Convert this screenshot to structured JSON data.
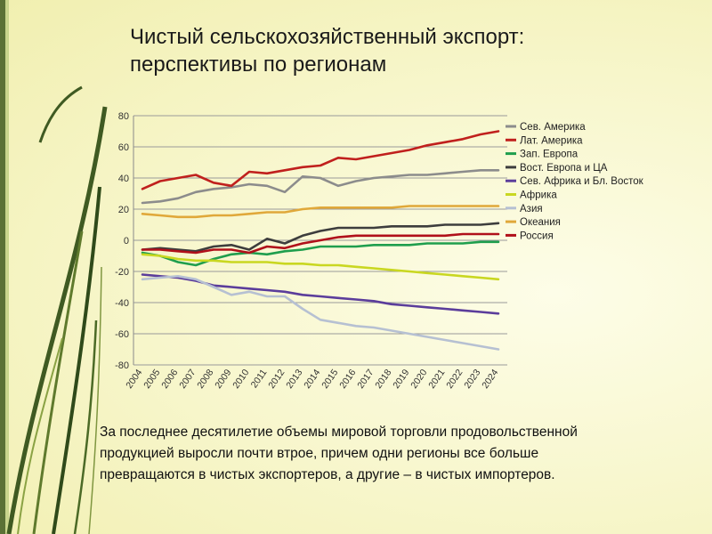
{
  "page": {
    "title_lines": [
      "Чистый сельскохозяйственный экспорт:",
      "перспективы по регионам"
    ],
    "caption_lines": [
      "За последнее десятилетие объемы мировой торговли продовольственной",
      "продукцией выросли почти втрое, причем одни регионы все больше",
      "превращаются в чистых экспортеров, а другие – в чистых импортеров."
    ]
  },
  "chart_data": {
    "type": "line",
    "title": "",
    "xlabel": "",
    "ylabel": "",
    "x": [
      "2004",
      "2005",
      "2006",
      "2007",
      "2008",
      "2009",
      "2010",
      "2011",
      "2012",
      "2013",
      "2014",
      "2015",
      "2016",
      "2017",
      "2018",
      "2019",
      "2020",
      "2021",
      "2022",
      "2023",
      "2024"
    ],
    "ylim": [
      -80,
      80
    ],
    "yticks": [
      80,
      60,
      40,
      20,
      0,
      -20,
      -40,
      -60,
      -80
    ],
    "ytick_labels": [
      "80",
      "60",
      "40",
      "20",
      "0",
      "-20",
      "-40",
      "-60",
      "-80"
    ],
    "grid": true,
    "legend_position": "right",
    "series": [
      {
        "name": "Сев. Америка",
        "color": "#8c8c8c",
        "values": [
          24,
          25,
          27,
          31,
          33,
          34,
          36,
          35,
          31,
          41,
          40,
          35,
          38,
          40,
          41,
          42,
          42,
          43,
          44,
          45,
          45
        ]
      },
      {
        "name": "Лат. Америка",
        "color": "#c0201d",
        "values": [
          33,
          38,
          40,
          42,
          37,
          35,
          44,
          43,
          45,
          47,
          48,
          53,
          52,
          54,
          56,
          58,
          61,
          63,
          65,
          68,
          70
        ]
      },
      {
        "name": "Зап. Европа",
        "color": "#1f9e4d",
        "values": [
          -8,
          -10,
          -14,
          -16,
          -12,
          -9,
          -8,
          -9,
          -7,
          -6,
          -4,
          -4,
          -4,
          -3,
          -3,
          -3,
          -2,
          -2,
          -2,
          -1,
          -1
        ]
      },
      {
        "name": "Вост. Европа и ЦА",
        "color": "#3d3d3d",
        "values": [
          -6,
          -5,
          -6,
          -7,
          -4,
          -3,
          -6,
          1,
          -2,
          3,
          6,
          8,
          8,
          8,
          9,
          9,
          9,
          10,
          10,
          10,
          11
        ]
      },
      {
        "name": "Сев. Африка и Бл. Восток",
        "color": "#5b3d9b",
        "values": [
          -22,
          -23,
          -24,
          -26,
          -29,
          -30,
          -31,
          -32,
          -33,
          -35,
          -36,
          -37,
          -38,
          -39,
          -41,
          -42,
          -43,
          -44,
          -45,
          -46,
          -47
        ]
      },
      {
        "name": "Африка",
        "color": "#c9d721",
        "values": [
          -9,
          -10,
          -12,
          -13,
          -13,
          -14,
          -14,
          -14,
          -15,
          -15,
          -16,
          -16,
          -17,
          -18,
          -19,
          -20,
          -21,
          -22,
          -23,
          -24,
          -25
        ]
      },
      {
        "name": "Азия",
        "color": "#b6c0d2",
        "values": [
          -25,
          -24,
          -23,
          -25,
          -30,
          -35,
          -33,
          -36,
          -36,
          -44,
          -51,
          -53,
          -55,
          -56,
          -58,
          -60,
          -62,
          -64,
          -66,
          -68,
          -70
        ]
      },
      {
        "name": "Океания",
        "color": "#e0a83a",
        "values": [
          17,
          16,
          15,
          15,
          16,
          16,
          17,
          18,
          18,
          20,
          21,
          21,
          21,
          21,
          21,
          22,
          22,
          22,
          22,
          22,
          22
        ]
      },
      {
        "name": "Россия",
        "color": "#b0101a",
        "values": [
          -6,
          -6,
          -7,
          -8,
          -6,
          -6,
          -8,
          -4,
          -5,
          -2,
          0,
          2,
          3,
          3,
          3,
          3,
          3,
          3,
          4,
          4,
          4
        ]
      }
    ]
  }
}
